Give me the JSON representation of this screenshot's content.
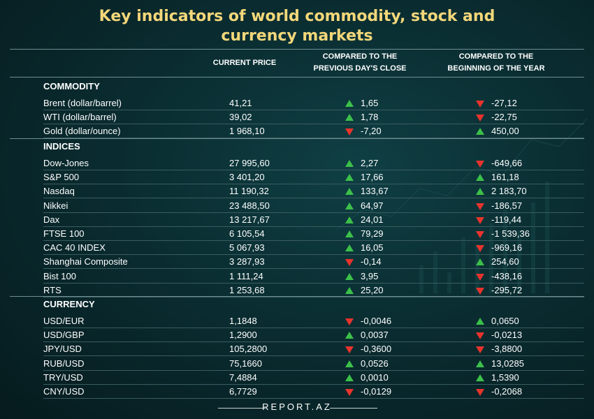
{
  "title": {
    "line1": "Key indicators of world commodity, stock and",
    "line2": "currency markets"
  },
  "columns": {
    "price": "CURRENT PRICE",
    "prev_line1": "COMPARED TO THE",
    "prev_line2": "PREVIOUS DAY'S CLOSE",
    "year_line1": "COMPARED TO THE",
    "year_line2": "BEGINNING OF THE YEAR"
  },
  "colors": {
    "title": "#f3d77a",
    "up": "#3cc04a",
    "down": "#e8332d",
    "background": "#0a2d31"
  },
  "sections": [
    {
      "title": "COMMODITY",
      "rows": [
        {
          "name": "Brent (dollar/barrel)",
          "price": "41,21",
          "day_dir": "up",
          "day": "1,65",
          "year_dir": "down",
          "year": "-27,12"
        },
        {
          "name": "WTI (dollar/barrel)",
          "price": "39,02",
          "day_dir": "up",
          "day": "1,78",
          "year_dir": "down",
          "year": "-22,75"
        },
        {
          "name": "Gold (dollar/ounce)",
          "price": "1 968,10",
          "day_dir": "down",
          "day": "-7,20",
          "year_dir": "up",
          "year": "450,00"
        }
      ]
    },
    {
      "title": "INDICES",
      "rows": [
        {
          "name": "Dow-Jones",
          "price": "27 995,60",
          "day_dir": "up",
          "day": "2,27",
          "year_dir": "down",
          "year": "-649,66"
        },
        {
          "name": "S&P 500",
          "price": "3 401,20",
          "day_dir": "up",
          "day": "17,66",
          "year_dir": "up",
          "year": "161,18"
        },
        {
          "name": "Nasdaq",
          "price": "11 190,32",
          "day_dir": "up",
          "day": "133,67",
          "year_dir": "up",
          "year": "2 183,70"
        },
        {
          "name": "Nikkei",
          "price": "23 488,50",
          "day_dir": "up",
          "day": "64,97",
          "year_dir": "down",
          "year": "-186,57"
        },
        {
          "name": "Dax",
          "price": "13 217,67",
          "day_dir": "up",
          "day": "24,01",
          "year_dir": "down",
          "year": "-119,44"
        },
        {
          "name": "FTSE 100",
          "price": "6 105,54",
          "day_dir": "up",
          "day": "79,29",
          "year_dir": "down",
          "year": "-1 539,36"
        },
        {
          "name": "CAC 40 INDEX",
          "price": "5 067,93",
          "day_dir": "up",
          "day": "16,05",
          "year_dir": "down",
          "year": "-969,16"
        },
        {
          "name": "Shanghai Composite",
          "price": "3 287,93",
          "day_dir": "down",
          "day": "-0,14",
          "year_dir": "up",
          "year": "254,60"
        },
        {
          "name": "Bist 100",
          "price": "1 111,24",
          "day_dir": "up",
          "day": "3,95",
          "year_dir": "down",
          "year": "-438,16"
        },
        {
          "name": "RTS",
          "price": "1 253,68",
          "day_dir": "up",
          "day": "25,20",
          "year_dir": "down",
          "year": "-295,72"
        }
      ]
    },
    {
      "title": "CURRENCY",
      "rows": [
        {
          "name": "USD/EUR",
          "price": "1,1848",
          "day_dir": "down",
          "day": "-0,0046",
          "year_dir": "up",
          "year": "0,0650"
        },
        {
          "name": "USD/GBP",
          "price": "1,2900",
          "day_dir": "up",
          "day": "0,0037",
          "year_dir": "down",
          "year": "-0,0213"
        },
        {
          "name": "JPY/USD",
          "price": "105,2800",
          "day_dir": "down",
          "day": "-0,3600",
          "year_dir": "down",
          "year": "-3,8800"
        },
        {
          "name": "RUB/USD",
          "price": "75,1660",
          "day_dir": "up",
          "day": "0,0526",
          "year_dir": "up",
          "year": "13,0285"
        },
        {
          "name": "TRY/USD",
          "price": "7,4884",
          "day_dir": "up",
          "day": "0,0010",
          "year_dir": "up",
          "year": "1,5390"
        },
        {
          "name": "CNY/USD",
          "price": "6,7729",
          "day_dir": "down",
          "day": "-0,0129",
          "year_dir": "down",
          "year": "-0,2068"
        }
      ]
    }
  ],
  "footer": "REPORT.AZ"
}
